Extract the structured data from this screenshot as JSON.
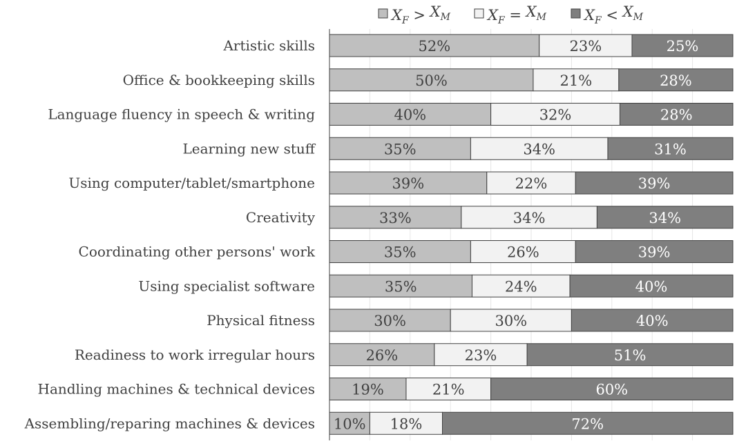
{
  "chart_data": {
    "type": "bar",
    "orientation": "horizontal",
    "stacked": true,
    "percent_axis": [
      0,
      100
    ],
    "legend_position": "top",
    "grid": true,
    "categories": [
      "Artistic skills",
      "Office & bookkeeping skills",
      "Language fluency in speech & writing",
      "Learning new stuff",
      "Using computer/tablet/smartphone",
      "Creativity",
      "Coordinating other persons' work",
      "Using specialist software",
      "Physical fitness",
      "Readiness to work irregular hours",
      "Handling machines & technical devices",
      "Assembling/reparing machines & devices"
    ],
    "series": [
      {
        "name": "X_F > X_M",
        "legend": {
          "a": "X",
          "a_sub": "F",
          "op": ">",
          "b": "X",
          "b_sub": "M"
        },
        "color": "#bfbfbf",
        "label_color": "#404040",
        "values": [
          52,
          50,
          40,
          35,
          39,
          33,
          35,
          35,
          30,
          26,
          19,
          10
        ],
        "labels": [
          "52%",
          "50%",
          "40%",
          "35%",
          "39%",
          "33%",
          "35%",
          "35%",
          "30%",
          "26%",
          "19%",
          "10%"
        ]
      },
      {
        "name": "X_F = X_M",
        "legend": {
          "a": "X",
          "a_sub": "F",
          "op": "=",
          "b": "X",
          "b_sub": "M"
        },
        "color": "#f2f2f2",
        "label_color": "#404040",
        "values": [
          23,
          21,
          32,
          34,
          22,
          34,
          26,
          24,
          30,
          23,
          21,
          18
        ],
        "labels": [
          "23%",
          "21%",
          "32%",
          "34%",
          "22%",
          "34%",
          "26%",
          "24%",
          "30%",
          "23%",
          "21%",
          "18%"
        ]
      },
      {
        "name": "X_F < X_M",
        "legend": {
          "a": "X",
          "a_sub": "F",
          "op": "<",
          "b": "X",
          "b_sub": "M"
        },
        "color": "#7f7f7f",
        "label_color": "#ffffff",
        "values": [
          25,
          28,
          28,
          31,
          39,
          34,
          39,
          40,
          40,
          51,
          60,
          72
        ],
        "labels": [
          "25%",
          "28%",
          "28%",
          "31%",
          "39%",
          "34%",
          "39%",
          "40%",
          "40%",
          "51%",
          "60%",
          "72%"
        ]
      }
    ]
  }
}
